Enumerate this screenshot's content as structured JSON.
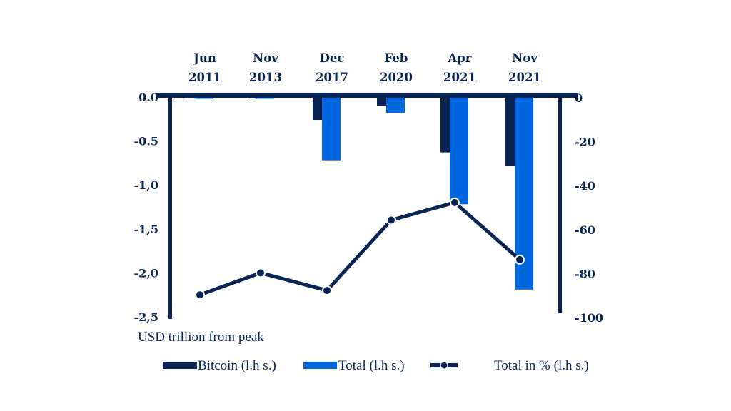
{
  "chart_data": {
    "type": "bar",
    "title": "",
    "categories": [
      {
        "month": "Jun",
        "year": "2011"
      },
      {
        "month": "Nov",
        "year": "2013"
      },
      {
        "month": "Dec",
        "year": "2017"
      },
      {
        "month": "Feb",
        "year": "2020"
      },
      {
        "month": "Apr",
        "year": "2021"
      },
      {
        "month": "Nov",
        "year": "2021"
      }
    ],
    "series": [
      {
        "name": "Bitcoin (l.h s.)",
        "type": "bar",
        "axis": "left",
        "color": "#0a2453",
        "values": [
          -0.01,
          -0.01,
          -0.26,
          -0.1,
          -0.63,
          -0.78
        ]
      },
      {
        "name": "Total (l.h s.)",
        "type": "bar",
        "axis": "left",
        "color": "#0066e0",
        "values": [
          -0.02,
          -0.02,
          -0.72,
          -0.18,
          -1.22,
          -2.19
        ]
      },
      {
        "name": "Total in % (l.h s.)",
        "type": "line",
        "axis": "right",
        "color": "#0a2453",
        "values": [
          -90,
          -80,
          -88,
          -56,
          -48,
          -74
        ]
      }
    ],
    "left_axis": {
      "ylim": [
        -2.5,
        0
      ],
      "tick_labels": [
        "0.0",
        "-0.5",
        "-1,0",
        "-1,5",
        "-2,0",
        "-2,5"
      ],
      "tick_values": [
        0,
        -0.5,
        -1.0,
        -1.5,
        -2.0,
        -2.5
      ],
      "label": "USD trillion from peak"
    },
    "right_axis": {
      "ylim": [
        -100,
        0
      ],
      "tick_labels": [
        "0",
        "-20",
        "-40",
        "-60",
        "-80",
        "-100"
      ],
      "tick_values": [
        0,
        -20,
        -40,
        -60,
        -80,
        -100
      ]
    },
    "grid": false,
    "legend_position": "bottom",
    "legend": [
      "Bitcoin (l.h s.)",
      "Total (l.h s.)",
      "Total in % (l.h s.)"
    ]
  }
}
